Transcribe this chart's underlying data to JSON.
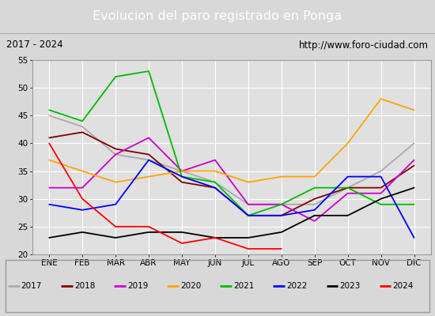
{
  "title": "Evolucion del paro registrado en Ponga",
  "subtitle_left": "2017 - 2024",
  "subtitle_right": "http://www.foro-ciudad.com",
  "months": [
    "ENE",
    "FEB",
    "MAR",
    "ABR",
    "MAY",
    "JUN",
    "JUL",
    "AGO",
    "SEP",
    "OCT",
    "NOV",
    "DIC"
  ],
  "ylim": [
    20,
    55
  ],
  "yticks": [
    20,
    25,
    30,
    35,
    40,
    45,
    50,
    55
  ],
  "series": {
    "2017": {
      "color": "#aaaaaa",
      "values": [
        45,
        43,
        38,
        37,
        35,
        33,
        29,
        29,
        29,
        32,
        35,
        40
      ]
    },
    "2018": {
      "color": "#800000",
      "values": [
        41,
        42,
        39,
        38,
        33,
        32,
        27,
        27,
        30,
        32,
        32,
        36
      ]
    },
    "2019": {
      "color": "#cc00cc",
      "values": [
        32,
        32,
        38,
        41,
        35,
        37,
        29,
        29,
        26,
        31,
        31,
        37
      ]
    },
    "2020": {
      "color": "#ffa500",
      "values": [
        37,
        35,
        33,
        34,
        35,
        35,
        33,
        34,
        34,
        40,
        48,
        46
      ]
    },
    "2021": {
      "color": "#00bb00",
      "values": [
        46,
        44,
        52,
        53,
        34,
        33,
        27,
        29,
        32,
        32,
        29,
        29
      ]
    },
    "2022": {
      "color": "#0000ff",
      "values": [
        29,
        28,
        29,
        37,
        34,
        32,
        27,
        27,
        28,
        34,
        34,
        23
      ]
    },
    "2023": {
      "color": "#000000",
      "values": [
        23,
        24,
        23,
        24,
        24,
        23,
        23,
        24,
        27,
        27,
        30,
        32
      ]
    },
    "2024": {
      "color": "#ff0000",
      "values": [
        40,
        30,
        25,
        25,
        22,
        23,
        21,
        21,
        null,
        null,
        null,
        null
      ]
    }
  },
  "background_color": "#d8d8d8",
  "plot_bg_color": "#e0e0e0",
  "title_bg_color": "#5588cc",
  "title_color": "white",
  "subtitle_bg_color": "#f8f8f8",
  "grid_color": "#ffffff",
  "legend_bg_color": "#f8f8f8"
}
